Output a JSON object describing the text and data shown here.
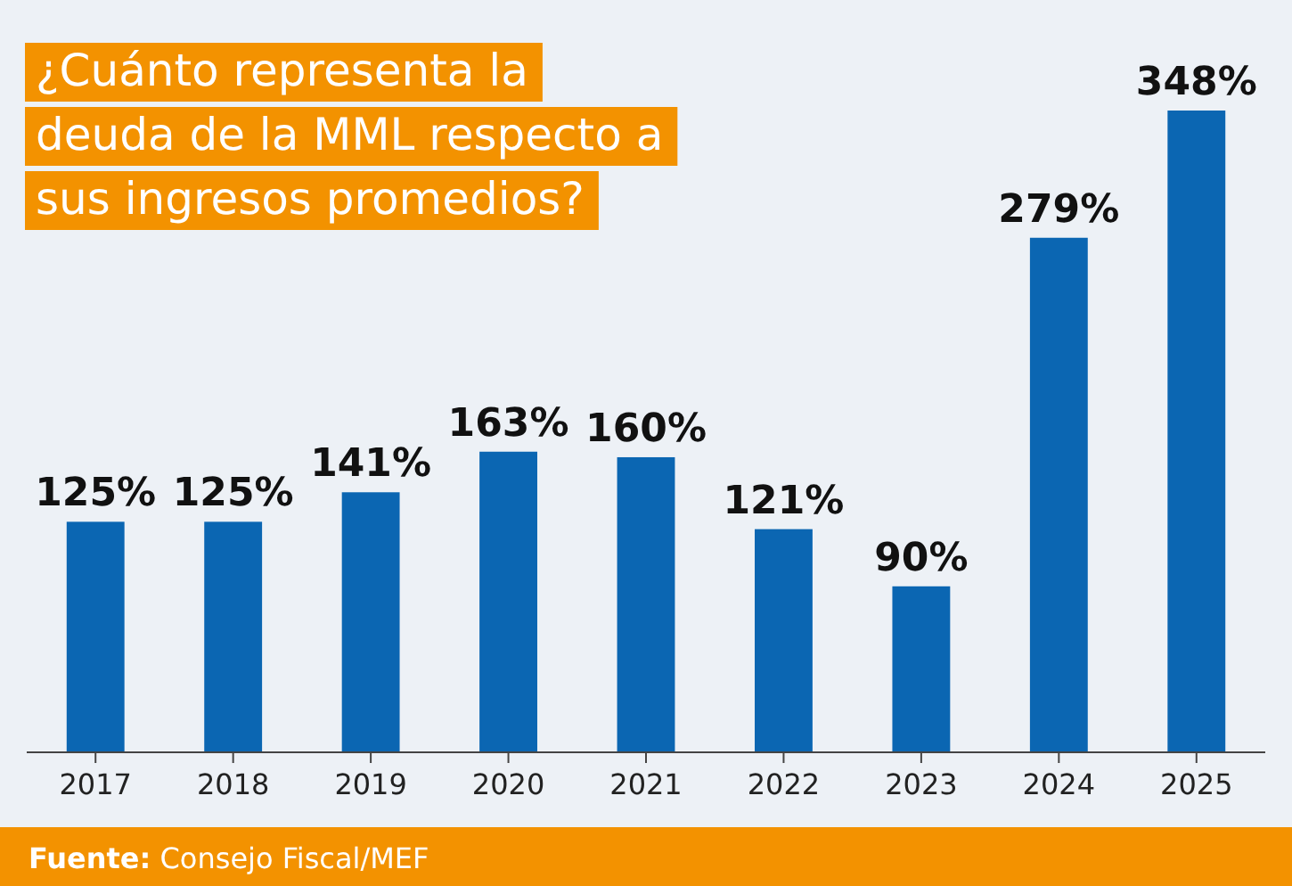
{
  "chart_data": {
    "type": "bar",
    "title": "¿Cuánto representa la\ndeuda de la MML respecto a\nsus ingresos promedios?",
    "categories": [
      "2017",
      "2018",
      "2019",
      "2020",
      "2021",
      "2022",
      "2023",
      "2024",
      "2025"
    ],
    "values": [
      125,
      125,
      141,
      163,
      160,
      121,
      90,
      279,
      348
    ],
    "color": "#0b66b2",
    "ylim": [
      0,
      348
    ],
    "data_labels": true,
    "value_labels": [
      "125%",
      "125%",
      "141%",
      "163%",
      "160%",
      "121%",
      "90%",
      "279%",
      "348%"
    ],
    "annotations": [
      "Fuente: Consejo Fiscal/MEF"
    ]
  }
}
